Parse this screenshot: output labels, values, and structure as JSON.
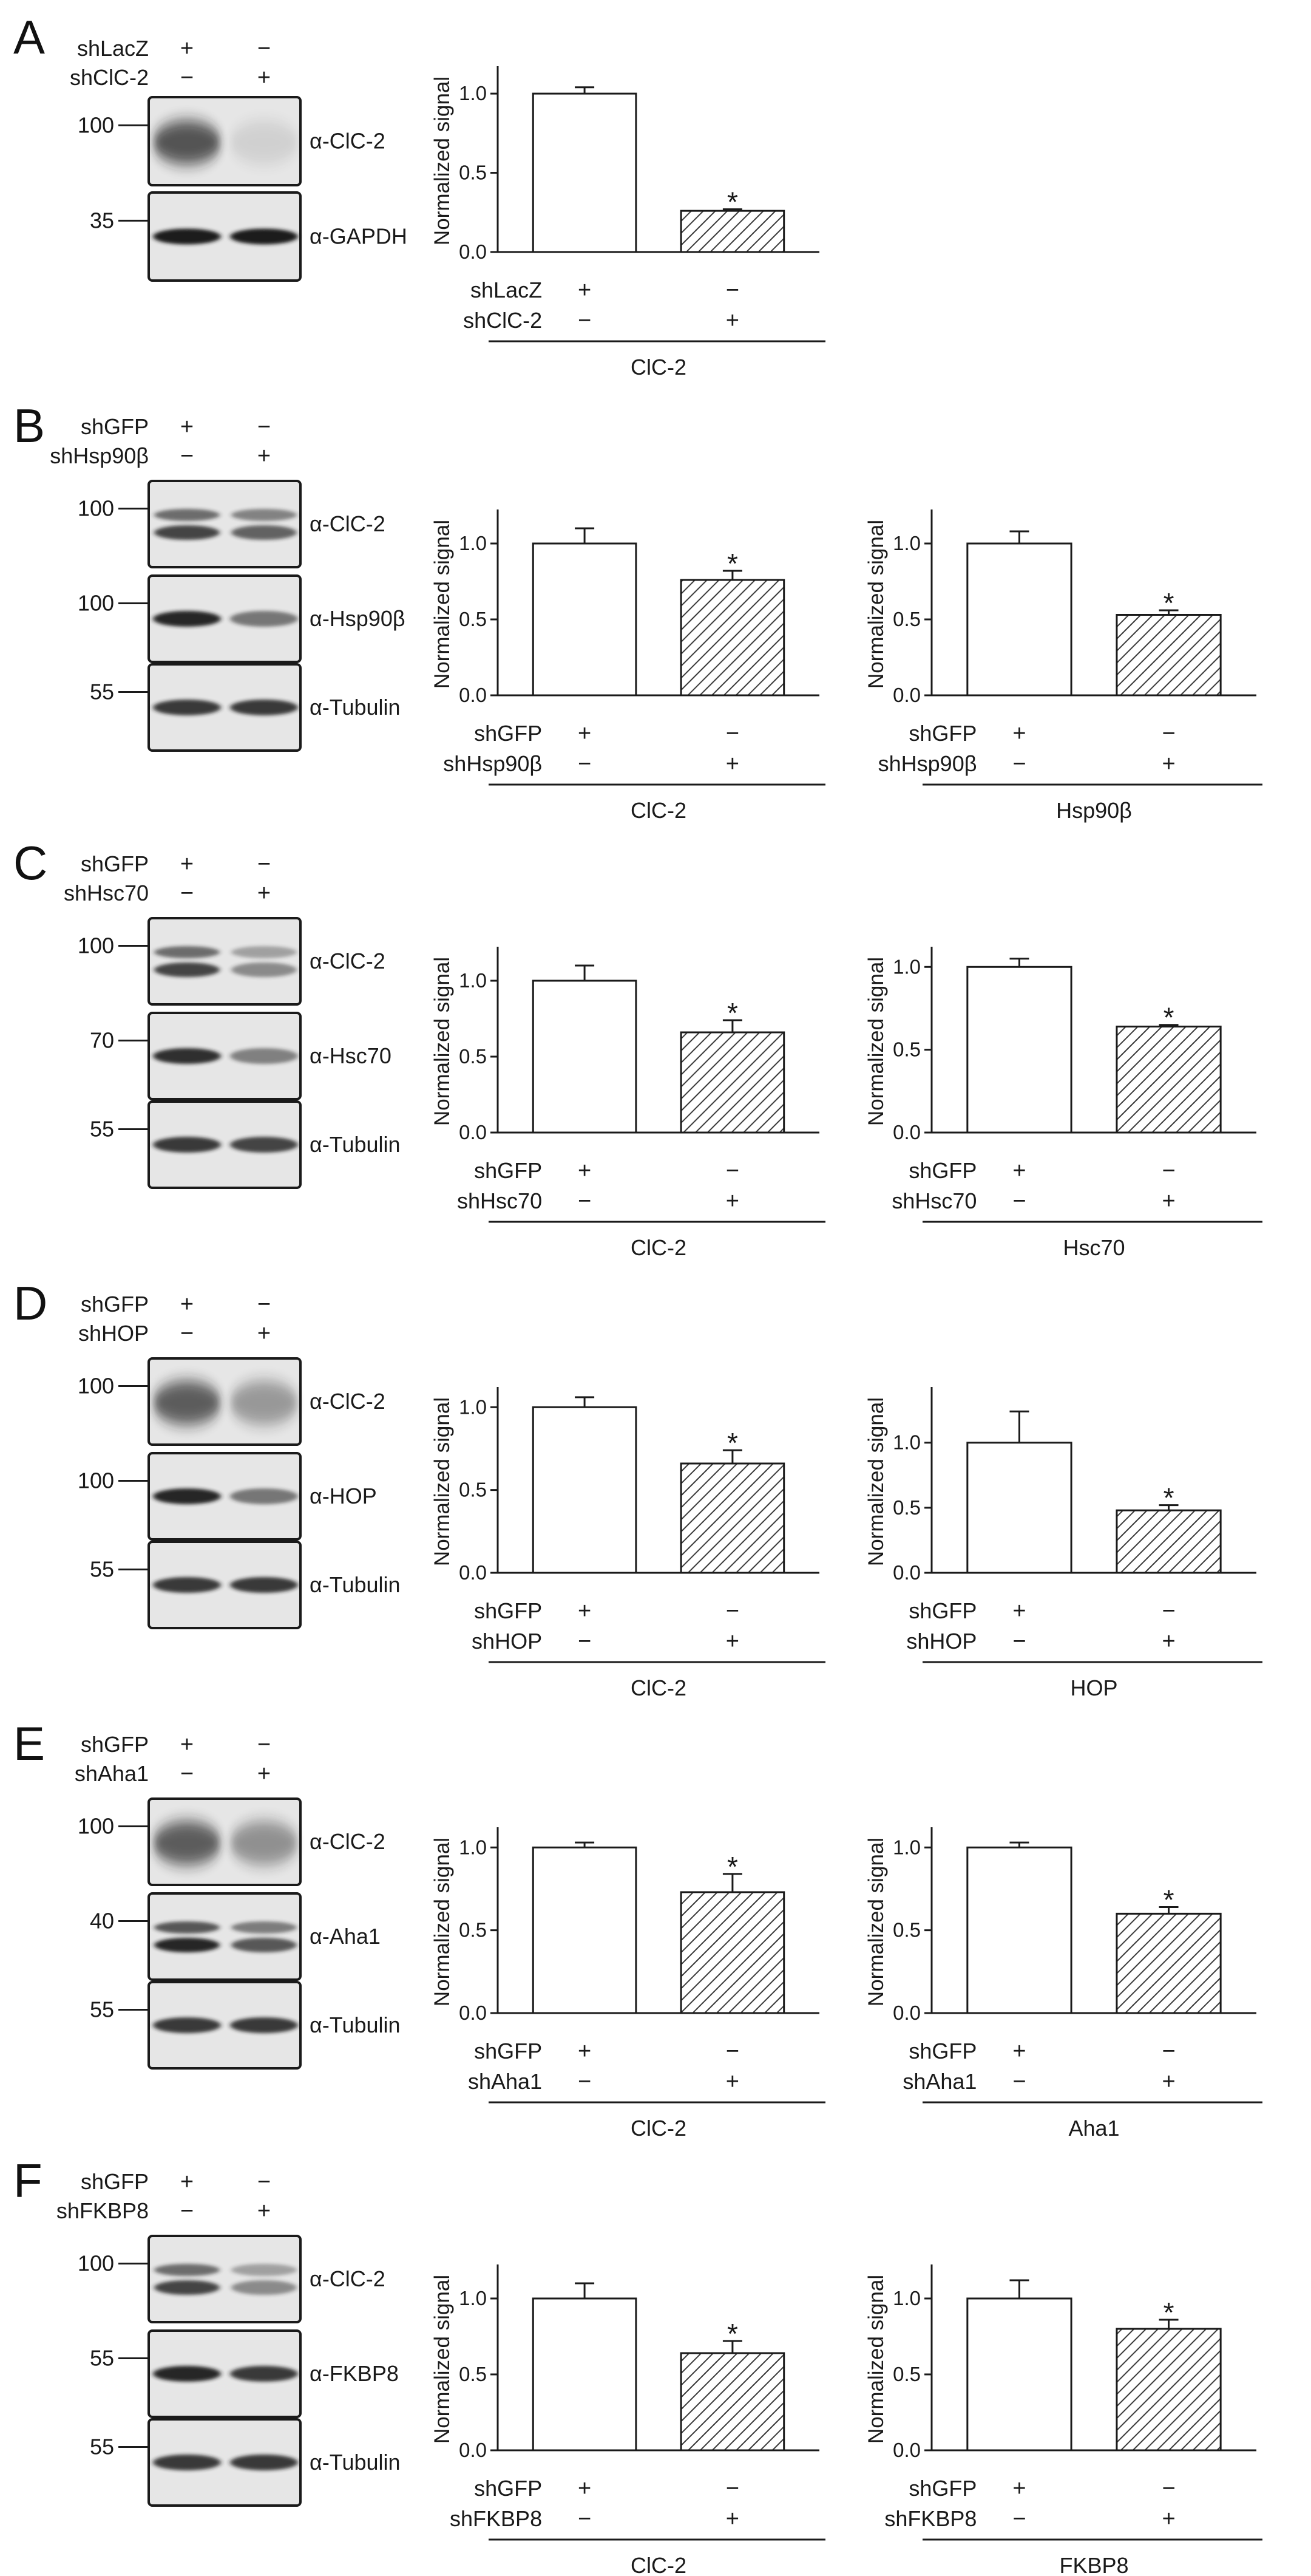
{
  "figure": {
    "sign_plus": "+",
    "sign_minus": "−",
    "y_axis_label": "Normalized signal",
    "tick_labels": [
      "0.0",
      "0.5",
      "1.0"
    ],
    "colors": {
      "axis": "#1a1a1a",
      "bar_control": "#ffffff",
      "bar_hatch": "#444444",
      "band": "#1c1c1c",
      "blot_bg": "#e6e6e6"
    }
  },
  "panels": [
    {
      "letter": "A",
      "control_label": "shLacZ",
      "knockdown_label": "shClC-2",
      "blots": [
        {
          "antibody": "α-ClC-2",
          "mw": "100",
          "lane_intensity": [
            0.85,
            0.12
          ],
          "style": "smear"
        },
        {
          "antibody": "α-GAPDH",
          "mw": "35",
          "lane_intensity": [
            1.0,
            1.0
          ],
          "style": "band"
        }
      ]
    },
    {
      "letter": "B",
      "control_label": "shGFP",
      "knockdown_label": "shHsp90β",
      "blots": [
        {
          "antibody": "α-ClC-2",
          "mw": "100",
          "lane_intensity": [
            0.8,
            0.65
          ],
          "style": "double"
        },
        {
          "antibody": "α-Hsp90β",
          "mw": "100",
          "lane_intensity": [
            0.95,
            0.55
          ],
          "style": "band"
        },
        {
          "antibody": "α-Tubulin",
          "mw": "55",
          "lane_intensity": [
            0.85,
            0.85
          ],
          "style": "band"
        }
      ]
    },
    {
      "letter": "C",
      "control_label": "shGFP",
      "knockdown_label": "shHsc70",
      "blots": [
        {
          "antibody": "α-ClC-2",
          "mw": "100",
          "lane_intensity": [
            0.8,
            0.45
          ],
          "style": "double"
        },
        {
          "antibody": "α-Hsc70",
          "mw": "70",
          "lane_intensity": [
            0.9,
            0.5
          ],
          "style": "band"
        },
        {
          "antibody": "α-Tubulin",
          "mw": "55",
          "lane_intensity": [
            0.85,
            0.8
          ],
          "style": "band"
        }
      ]
    },
    {
      "letter": "D",
      "control_label": "shGFP",
      "knockdown_label": "shHOP",
      "blots": [
        {
          "antibody": "α-ClC-2",
          "mw": "100",
          "lane_intensity": [
            0.8,
            0.45
          ],
          "style": "smear"
        },
        {
          "antibody": "α-HOP",
          "mw": "100",
          "lane_intensity": [
            0.95,
            0.55
          ],
          "style": "band"
        },
        {
          "antibody": "α-Tubulin",
          "mw": "55",
          "lane_intensity": [
            0.85,
            0.85
          ],
          "style": "band"
        }
      ]
    },
    {
      "letter": "E",
      "control_label": "shGFP",
      "knockdown_label": "shAha1",
      "blots": [
        {
          "antibody": "α-ClC-2",
          "mw": "100",
          "lane_intensity": [
            0.8,
            0.5
          ],
          "style": "smear"
        },
        {
          "antibody": "α-Aha1",
          "mw": "40",
          "lane_intensity": [
            0.95,
            0.7
          ],
          "style": "double"
        },
        {
          "antibody": "α-Tubulin",
          "mw": "55",
          "lane_intensity": [
            0.85,
            0.85
          ],
          "style": "band"
        }
      ]
    },
    {
      "letter": "F",
      "control_label": "shGFP",
      "knockdown_label": "shFKBP8",
      "blots": [
        {
          "antibody": "α-ClC-2",
          "mw": "100",
          "lane_intensity": [
            0.8,
            0.45
          ],
          "style": "double"
        },
        {
          "antibody": "α-FKBP8",
          "mw": "55",
          "lane_intensity": [
            0.95,
            0.85
          ],
          "style": "band"
        },
        {
          "antibody": "α-Tubulin",
          "mw": "55",
          "lane_intensity": [
            0.85,
            0.85
          ],
          "style": "band"
        }
      ]
    }
  ],
  "chart_data": [
    {
      "type": "bar",
      "panel": "A",
      "target": "ClC-2",
      "title": "",
      "xlabel": "ClC-2",
      "ylabel": "Normalized signal",
      "categories": [
        "shLacZ",
        "shClC-2"
      ],
      "values": [
        1.0,
        0.26
      ],
      "errors": [
        0.04,
        0.01
      ],
      "significant": [
        false,
        true
      ],
      "ylim": [
        0,
        1.15
      ],
      "yticks": [
        0,
        0.5,
        1.0
      ]
    },
    {
      "type": "bar",
      "panel": "B",
      "target": "ClC-2",
      "title": "",
      "xlabel": "ClC-2",
      "ylabel": "Normalized signal",
      "categories": [
        "shGFP",
        "shHsp90β"
      ],
      "values": [
        1.0,
        0.76
      ],
      "errors": [
        0.1,
        0.06
      ],
      "significant": [
        false,
        true
      ],
      "ylim": [
        0,
        1.2
      ],
      "yticks": [
        0,
        0.5,
        1.0
      ]
    },
    {
      "type": "bar",
      "panel": "B",
      "target": "Hsp90β",
      "title": "",
      "xlabel": "Hsp90β",
      "ylabel": "Normalized signal",
      "categories": [
        "shGFP",
        "shHsp90β"
      ],
      "values": [
        1.0,
        0.53
      ],
      "errors": [
        0.08,
        0.03
      ],
      "significant": [
        false,
        true
      ],
      "ylim": [
        0,
        1.2
      ],
      "yticks": [
        0,
        0.5,
        1.0
      ]
    },
    {
      "type": "bar",
      "panel": "C",
      "target": "ClC-2",
      "title": "",
      "xlabel": "ClC-2",
      "ylabel": "Normalized signal",
      "categories": [
        "shGFP",
        "shHsc70"
      ],
      "values": [
        1.0,
        0.66
      ],
      "errors": [
        0.1,
        0.08
      ],
      "significant": [
        false,
        true
      ],
      "ylim": [
        0,
        1.2
      ],
      "yticks": [
        0,
        0.5,
        1.0
      ]
    },
    {
      "type": "bar",
      "panel": "C",
      "target": "Hsc70",
      "title": "",
      "xlabel": "Hsc70",
      "ylabel": "Normalized signal",
      "categories": [
        "shGFP",
        "shHsc70"
      ],
      "values": [
        1.0,
        0.64
      ],
      "errors": [
        0.05,
        0.01
      ],
      "significant": [
        false,
        true
      ],
      "ylim": [
        0,
        1.1
      ],
      "yticks": [
        0,
        0.5,
        1.0
      ]
    },
    {
      "type": "bar",
      "panel": "D",
      "target": "ClC-2",
      "title": "",
      "xlabel": "ClC-2",
      "ylabel": "Normalized signal",
      "categories": [
        "shGFP",
        "shHOP"
      ],
      "values": [
        1.0,
        0.66
      ],
      "errors": [
        0.06,
        0.08
      ],
      "significant": [
        false,
        true
      ],
      "ylim": [
        0,
        1.1
      ],
      "yticks": [
        0,
        0.5,
        1.0
      ]
    },
    {
      "type": "bar",
      "panel": "D",
      "target": "HOP",
      "title": "",
      "xlabel": "HOP",
      "ylabel": "Normalized signal",
      "categories": [
        "shGFP",
        "shHOP"
      ],
      "values": [
        1.0,
        0.48
      ],
      "errors": [
        0.24,
        0.04
      ],
      "significant": [
        false,
        true
      ],
      "ylim": [
        0,
        1.4
      ],
      "yticks": [
        0,
        0.5,
        1.0
      ]
    },
    {
      "type": "bar",
      "panel": "E",
      "target": "ClC-2",
      "title": "",
      "xlabel": "ClC-2",
      "ylabel": "Normalized signal",
      "categories": [
        "shGFP",
        "shAha1"
      ],
      "values": [
        1.0,
        0.73
      ],
      "errors": [
        0.03,
        0.11
      ],
      "significant": [
        false,
        true
      ],
      "ylim": [
        0,
        1.1
      ],
      "yticks": [
        0,
        0.5,
        1.0
      ]
    },
    {
      "type": "bar",
      "panel": "E",
      "target": "Aha1",
      "title": "",
      "xlabel": "Aha1",
      "ylabel": "Normalized signal",
      "categories": [
        "shGFP",
        "shAha1"
      ],
      "values": [
        1.0,
        0.6
      ],
      "errors": [
        0.03,
        0.04
      ],
      "significant": [
        false,
        true
      ],
      "ylim": [
        0,
        1.1
      ],
      "yticks": [
        0,
        0.5,
        1.0
      ]
    },
    {
      "type": "bar",
      "panel": "F",
      "target": "ClC-2",
      "title": "",
      "xlabel": "ClC-2",
      "ylabel": "Normalized signal",
      "categories": [
        "shGFP",
        "shFKBP8"
      ],
      "values": [
        1.0,
        0.64
      ],
      "errors": [
        0.1,
        0.08
      ],
      "significant": [
        false,
        true
      ],
      "ylim": [
        0,
        1.2
      ],
      "yticks": [
        0,
        0.5,
        1.0
      ]
    },
    {
      "type": "bar",
      "panel": "F",
      "target": "FKBP8",
      "title": "",
      "xlabel": "FKBP8",
      "ylabel": "Normalized signal",
      "categories": [
        "shGFP",
        "shFKBP8"
      ],
      "values": [
        1.0,
        0.8
      ],
      "errors": [
        0.12,
        0.06
      ],
      "significant": [
        false,
        true
      ],
      "ylim": [
        0,
        1.2
      ],
      "yticks": [
        0,
        0.5,
        1.0
      ]
    }
  ]
}
